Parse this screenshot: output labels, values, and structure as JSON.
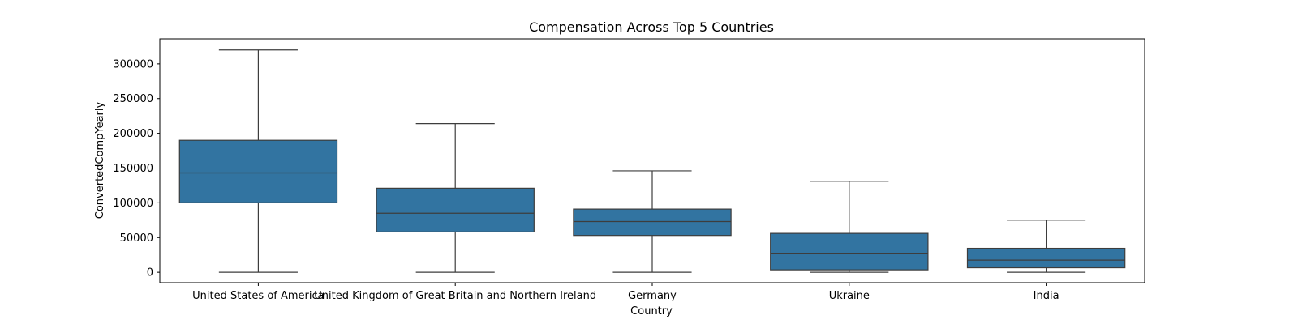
{
  "chart_data": {
    "type": "box",
    "title": "Compensation Across Top 5 Countries",
    "xlabel": "Country",
    "ylabel": "ConvertedCompYearly",
    "ylim": [
      -15000,
      336000
    ],
    "yticks": [
      0,
      50000,
      100000,
      150000,
      200000,
      250000,
      300000
    ],
    "ytick_labels": [
      "0",
      "50000",
      "100000",
      "150000",
      "200000",
      "250000",
      "300000"
    ],
    "categories": [
      "United States of America",
      "United Kingdom of Great Britain and Northern Ireland",
      "Germany",
      "Ukraine",
      "India"
    ],
    "boxes": [
      {
        "whisker_low": 0,
        "q1": 100000,
        "median": 143000,
        "q3": 190000,
        "whisker_high": 320000
      },
      {
        "whisker_low": 0,
        "q1": 58000,
        "median": 85000,
        "q3": 121000,
        "whisker_high": 214000
      },
      {
        "whisker_low": 0,
        "q1": 53000,
        "median": 73000,
        "q3": 91000,
        "whisker_high": 146000
      },
      {
        "whisker_low": 0,
        "q1": 3500,
        "median": 27500,
        "q3": 56000,
        "whisker_high": 131000
      },
      {
        "whisker_low": 0,
        "q1": 6500,
        "median": 17500,
        "q3": 34500,
        "whisker_high": 75000
      }
    ],
    "grid": false,
    "box_color": "#3274a1",
    "line_color": "#3d3d3d"
  }
}
